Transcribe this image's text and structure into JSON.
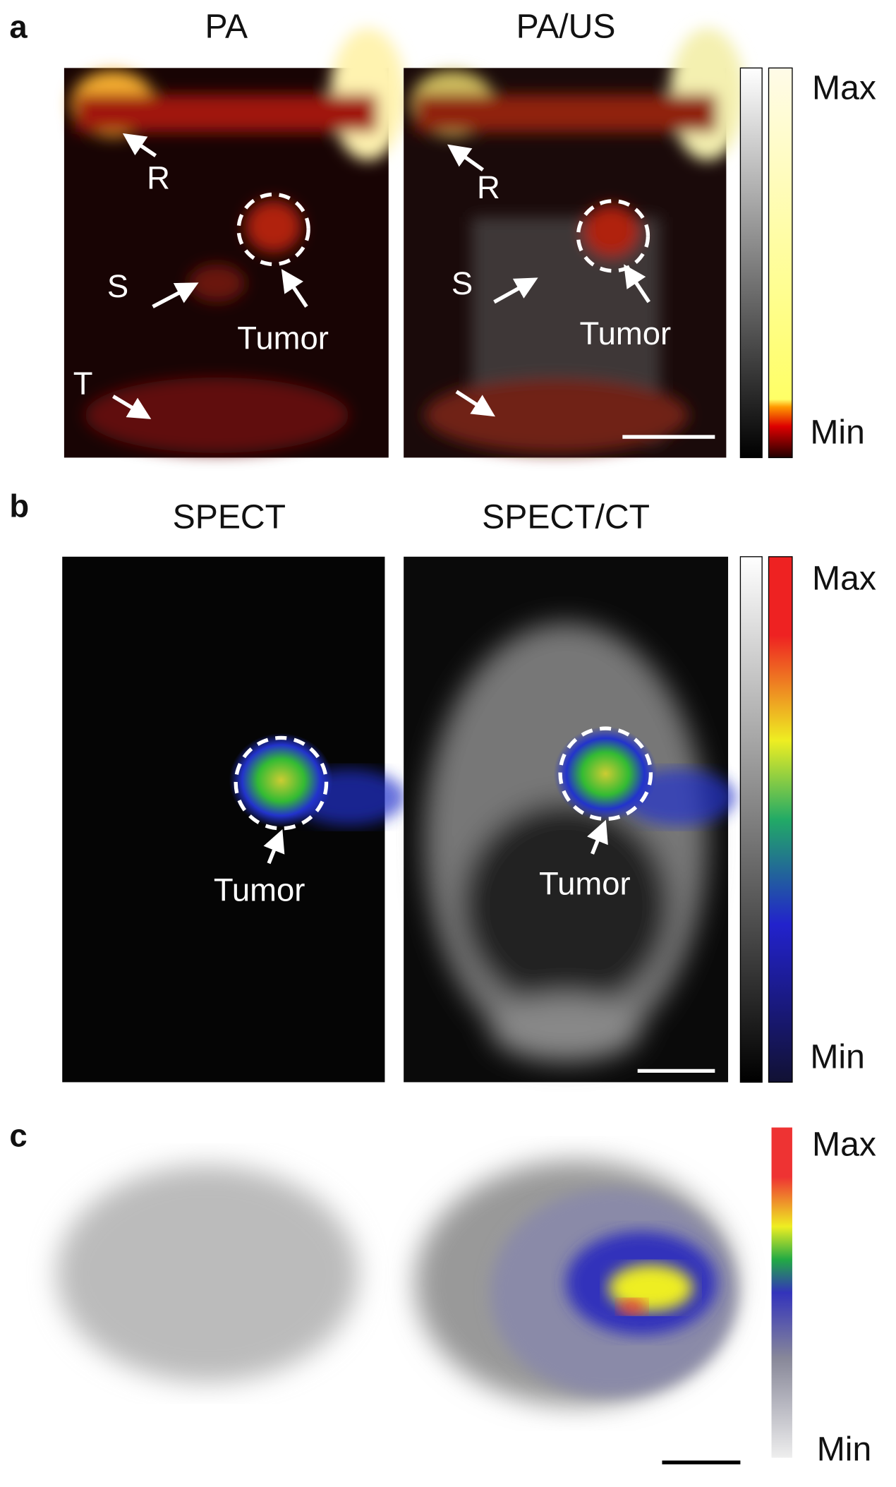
{
  "panels": [
    {
      "label": "a",
      "titles": [
        "PA",
        "PA/US"
      ],
      "annotations": [
        [
          "R",
          "S",
          "Tumor",
          "T"
        ],
        [
          "R",
          "S",
          "Tumor"
        ]
      ],
      "colorbar": {
        "max": "Max",
        "min": "Min"
      }
    },
    {
      "label": "b",
      "titles": [
        "SPECT",
        "SPECT/CT"
      ],
      "annotations": [
        [
          "Tumor"
        ],
        [
          "Tumor"
        ]
      ],
      "colorbar": {
        "max": "Max",
        "min": "Min"
      }
    },
    {
      "label": "c",
      "colorbar": {
        "max": "Max",
        "min": "Min"
      }
    }
  ]
}
